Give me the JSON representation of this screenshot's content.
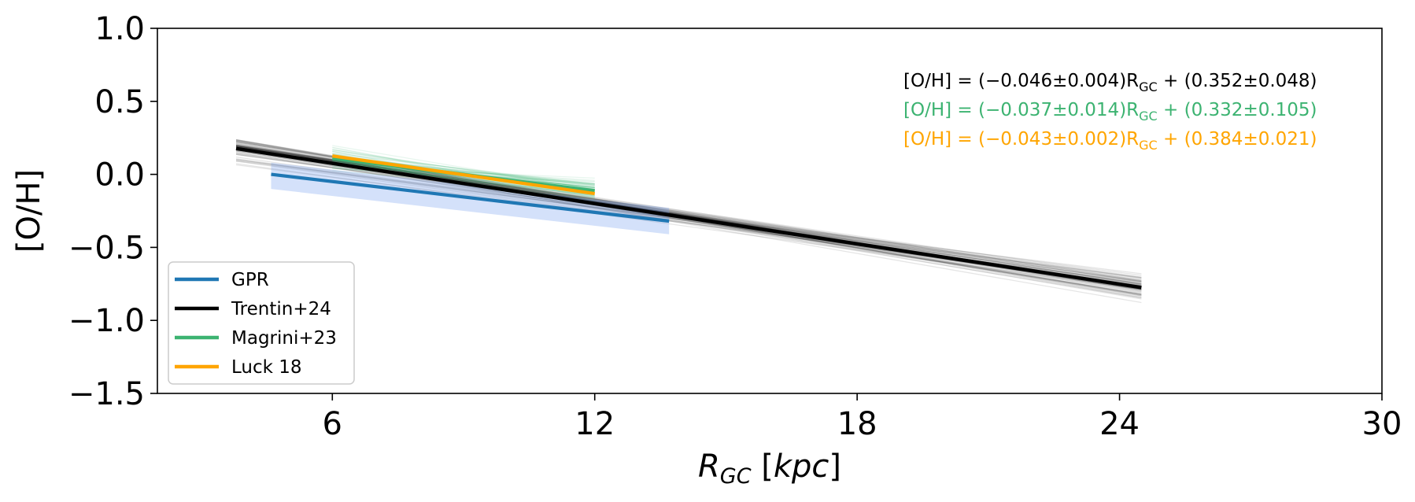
{
  "chart_data": {
    "type": "line",
    "xlabel": "R_GC [kpc]",
    "ylabel": "[O/H]",
    "xlim": [
      2,
      30
    ],
    "ylim": [
      -1.5,
      1.0
    ],
    "xticks": [
      6,
      12,
      18,
      24,
      30
    ],
    "xtick_labels": [
      "6",
      "12",
      "18",
      "24",
      "30"
    ],
    "yticks": [
      1.0,
      0.5,
      0.0,
      -0.5,
      -1.0,
      -1.5
    ],
    "ytick_labels": [
      "1.0",
      "0.5",
      "0.0",
      "−0.5",
      "−1.0",
      "−1.5"
    ],
    "grid": false,
    "legend_placement": "lower-left",
    "series": [
      {
        "name": "GPR",
        "color": "#1f77b4",
        "x": [
          4.6,
          13.7
        ],
        "y": [
          0.0,
          -0.32
        ],
        "band_lower": [
          -0.1,
          -0.41
        ],
        "band_upper": [
          0.08,
          -0.23
        ]
      },
      {
        "name": "Trentin+24",
        "color": "#000000",
        "x": [
          3.8,
          24.5
        ],
        "y": [
          0.177,
          -0.775
        ],
        "equation": {
          "prefix": "[O/H] = (−0.046±0.004)R",
          "sub": "GC",
          "suffix": " + (0.352±0.048)"
        }
      },
      {
        "name": "Magrini+23",
        "color": "#3cb371",
        "x": [
          6.0,
          12.0
        ],
        "y": [
          0.11,
          -0.112
        ],
        "equation": {
          "prefix": "[O/H] = (−0.037±0.014)R",
          "sub": "GC",
          "suffix": " + (0.332±0.105)"
        }
      },
      {
        "name": "Luck 18",
        "color": "#ffa500",
        "x": [
          6.0,
          12.0
        ],
        "y": [
          0.126,
          -0.132
        ],
        "equation": {
          "prefix": "[O/H] = (−0.043±0.002)R",
          "sub": "GC",
          "suffix": " + (0.384±0.021)"
        }
      }
    ]
  }
}
